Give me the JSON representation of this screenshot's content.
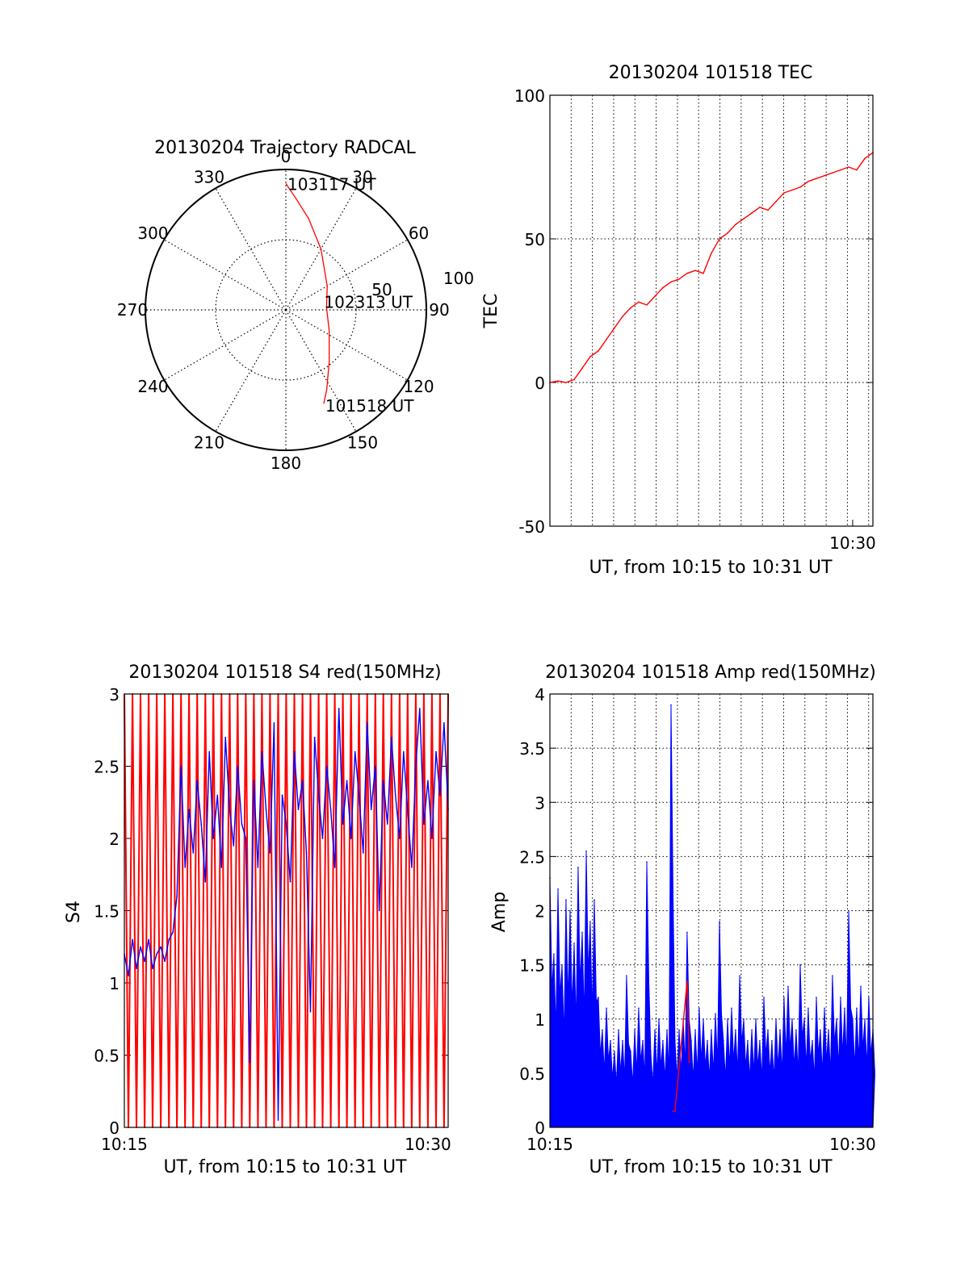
{
  "chart_data": [
    {
      "id": "trajectory",
      "type": "polar",
      "title": "20130204 Trajectory RADCAL",
      "angle_labels": [
        "0",
        "30",
        "60",
        "90",
        "120",
        "150",
        "180",
        "210",
        "240",
        "270",
        "300",
        "330"
      ],
      "radial_labels": [
        "50",
        "100"
      ],
      "rlim": [
        0,
        100
      ],
      "point_labels": [
        "103117 UT",
        "102313 UT",
        "101518 UT"
      ],
      "series": [
        {
          "color": "#ff0000",
          "points": [
            {
              "az": 0,
              "r": 90
            },
            {
              "az": 5,
              "r": 80
            },
            {
              "az": 14,
              "r": 67
            },
            {
              "az": 30,
              "r": 50
            },
            {
              "az": 60,
              "r": 34
            },
            {
              "az": 87,
              "r": 29
            },
            {
              "az": 115,
              "r": 34
            },
            {
              "az": 140,
              "r": 48
            },
            {
              "az": 153,
              "r": 64
            },
            {
              "az": 158,
              "r": 72
            }
          ]
        }
      ],
      "grid": true
    },
    {
      "id": "tec",
      "type": "line",
      "title": "20130204 101518 TEC",
      "xlabel": "UT, from 10:15 to 10:31 UT",
      "ylabel": "TEC",
      "xlim": [
        10.25,
        10.5167
      ],
      "ylim": [
        -50,
        100
      ],
      "yticks": [
        "-50",
        "0",
        "50",
        "100"
      ],
      "xticks": [
        "10:30"
      ],
      "grid": true,
      "series": [
        {
          "color": "#ff0000",
          "x": [
            10.25,
            10.2567,
            10.2633,
            10.27,
            10.2767,
            10.2833,
            10.29,
            10.2967,
            10.3033,
            10.31,
            10.3167,
            10.3233,
            10.33,
            10.3367,
            10.3433,
            10.35,
            10.3567,
            10.3633,
            10.37,
            10.3767,
            10.3833,
            10.39,
            10.3967,
            10.4033,
            10.41,
            10.4167,
            10.4233,
            10.43,
            10.4367,
            10.4433,
            10.45,
            10.4567,
            10.4633,
            10.47,
            10.4767,
            10.4833,
            10.49,
            10.4967,
            10.5033,
            10.51,
            10.5167
          ],
          "values": [
            0,
            0.5,
            0,
            1,
            5,
            9,
            11,
            15,
            19,
            23,
            26,
            28,
            27,
            30,
            33,
            35,
            36,
            38,
            39,
            38,
            45,
            50,
            52,
            55,
            57,
            59,
            61,
            60,
            63,
            66,
            67,
            68,
            70,
            71,
            72,
            73,
            74,
            75,
            74,
            78,
            80
          ]
        }
      ]
    },
    {
      "id": "s4",
      "type": "line",
      "title": "20130204 101518 S4 red(150MHz)",
      "xlabel": "UT, from 10:15 to 10:31 UT",
      "ylabel": "S4",
      "xlim": [
        10.25,
        10.5167
      ],
      "ylim": [
        0,
        3
      ],
      "yticks": [
        "0",
        "0.5",
        "1",
        "1.5",
        "2",
        "2.5",
        "3"
      ],
      "xticks": [
        "10:15",
        "10:30"
      ],
      "grid": false,
      "series": [
        {
          "color": "#ff0000",
          "x": [
            10.25,
            10.2533,
            10.2567,
            10.26,
            10.2633,
            10.2667,
            10.27,
            10.2733,
            10.2767,
            10.28,
            10.2833,
            10.2867,
            10.29,
            10.2933,
            10.2967,
            10.3,
            10.3033,
            10.3067,
            10.31,
            10.3133,
            10.3167,
            10.32,
            10.3233,
            10.3267,
            10.33,
            10.3333,
            10.3367,
            10.34,
            10.3433,
            10.3467,
            10.35,
            10.3533,
            10.3567,
            10.36,
            10.3633,
            10.3667,
            10.37,
            10.3733,
            10.3767,
            10.38,
            10.3833,
            10.3867,
            10.39,
            10.3933,
            10.3967,
            10.4,
            10.4033,
            10.4067,
            10.41,
            10.4133,
            10.4167,
            10.42,
            10.4233,
            10.4267,
            10.43,
            10.4333,
            10.4367,
            10.44,
            10.4433,
            10.4467,
            10.45,
            10.4533,
            10.4567,
            10.46,
            10.4633,
            10.4667,
            10.47,
            10.4733,
            10.4767,
            10.48,
            10.4833,
            10.4867,
            10.49,
            10.4933,
            10.4967,
            10.5,
            10.5033,
            10.5067,
            10.51,
            10.5133,
            10.5167
          ],
          "values": [
            3,
            0,
            3,
            0,
            3,
            0,
            3,
            0,
            3,
            0,
            3,
            0,
            3,
            0,
            3,
            0,
            3,
            0,
            3,
            0,
            3,
            0,
            3,
            0,
            3,
            0,
            3,
            0,
            3,
            0,
            3,
            0,
            3,
            0,
            3,
            0,
            3,
            0,
            3,
            0,
            3,
            0,
            3,
            0,
            3,
            0,
            3,
            0,
            3,
            0,
            3,
            0,
            3,
            0,
            3,
            0,
            3,
            0,
            3,
            0,
            3,
            0,
            3,
            0,
            3,
            0,
            3,
            0,
            3,
            0,
            3,
            0,
            3,
            0,
            3,
            0,
            3,
            0,
            3,
            0,
            3
          ]
        },
        {
          "color": "#0000ff",
          "x": [
            10.25,
            10.2533,
            10.2567,
            10.26,
            10.2633,
            10.2667,
            10.27,
            10.2733,
            10.2767,
            10.28,
            10.2833,
            10.2867,
            10.29,
            10.2933,
            10.2967,
            10.3,
            10.3033,
            10.3067,
            10.31,
            10.3133,
            10.3167,
            10.32,
            10.3233,
            10.3267,
            10.33,
            10.3333,
            10.3367,
            10.34,
            10.3433,
            10.3467,
            10.35,
            10.3533,
            10.3567,
            10.36,
            10.3633,
            10.3667,
            10.37,
            10.3733,
            10.3767,
            10.38,
            10.3833,
            10.3867,
            10.39,
            10.3933,
            10.3967,
            10.4,
            10.4033,
            10.4067,
            10.41,
            10.4133,
            10.4167,
            10.42,
            10.4233,
            10.4267,
            10.43,
            10.4333,
            10.4367,
            10.44,
            10.4433,
            10.4467,
            10.45,
            10.4533,
            10.4567,
            10.46,
            10.4633,
            10.4667,
            10.47,
            10.4733,
            10.4767,
            10.48,
            10.4833,
            10.4867,
            10.49,
            10.4933,
            10.4967,
            10.5,
            10.5033,
            10.5067,
            10.51,
            10.5133,
            10.5167
          ],
          "values": [
            1.2,
            1.05,
            1.3,
            1.1,
            1.25,
            1.15,
            1.3,
            1.1,
            1.2,
            1.25,
            1.15,
            1.3,
            1.35,
            1.6,
            2.5,
            1.8,
            2.2,
            1.9,
            2.4,
            2.1,
            1.7,
            2.6,
            2.0,
            2.3,
            1.8,
            2.7,
            2.2,
            1.95,
            2.5,
            2.1,
            2.0,
            0.45,
            2.4,
            1.8,
            2.6,
            2.2,
            1.9,
            2.8,
            0.05,
            2.3,
            2.1,
            1.7,
            2.6,
            2.2,
            2.4,
            1.9,
            0.8,
            2.7,
            2.3,
            2.0,
            2.5,
            2.2,
            1.8,
            2.9,
            2.1,
            2.4,
            2.0,
            2.6,
            2.3,
            1.9,
            2.8,
            2.2,
            2.5,
            1.5,
            2.4,
            2.1,
            2.7,
            2.3,
            2.0,
            2.6,
            2.2,
            1.8,
            2.5,
            2.9,
            2.1,
            2.4,
            2.0,
            2.6,
            2.3,
            2.8,
            2.2
          ]
        }
      ]
    },
    {
      "id": "amp",
      "type": "line",
      "title": "20130204 101518 Amp red(150MHz)",
      "xlabel": "UT, from 10:15 to 10:31 UT",
      "ylabel": "Amp",
      "xlim": [
        10.25,
        10.5167
      ],
      "ylim": [
        0,
        4
      ],
      "yticks": [
        "0",
        "0.5",
        "1",
        "1.5",
        "2",
        "2.5",
        "3",
        "3.5",
        "4"
      ],
      "xticks": [
        "10:15",
        "10:30"
      ],
      "grid": true,
      "series": [
        {
          "color": "#0000ff",
          "x": [
            10.25,
            10.2533,
            10.2567,
            10.26,
            10.2633,
            10.2667,
            10.27,
            10.2733,
            10.2767,
            10.28,
            10.2833,
            10.2867,
            10.29,
            10.2933,
            10.2967,
            10.3,
            10.3033,
            10.3067,
            10.31,
            10.3133,
            10.3167,
            10.32,
            10.3233,
            10.3267,
            10.33,
            10.3333,
            10.3367,
            10.34,
            10.3433,
            10.3467,
            10.35,
            10.3533,
            10.3567,
            10.36,
            10.3633,
            10.3667,
            10.37,
            10.3733,
            10.3767,
            10.38,
            10.3833,
            10.3867,
            10.39,
            10.3933,
            10.3967,
            10.4,
            10.4033,
            10.4067,
            10.41,
            10.4133,
            10.4167,
            10.42,
            10.4233,
            10.4267,
            10.43,
            10.4333,
            10.4367,
            10.44,
            10.4433,
            10.4467,
            10.45,
            10.4533,
            10.4567,
            10.46,
            10.4633,
            10.4667,
            10.47,
            10.4733,
            10.4767,
            10.48,
            10.4833,
            10.4867,
            10.49,
            10.4933,
            10.4967,
            10.5,
            10.5033,
            10.5067,
            10.51,
            10.5133,
            10.5167
          ],
          "values": [
            2.3,
            1.6,
            2.2,
            1.5,
            2.1,
            2.0,
            1.7,
            2.4,
            1.8,
            2.55,
            1.9,
            2.1,
            1.2,
            0.9,
            1.1,
            0.8,
            0.7,
            0.9,
            0.8,
            1.4,
            0.7,
            0.9,
            1.1,
            0.8,
            2.45,
            0.7,
            0.9,
            1.0,
            0.8,
            0.9,
            3.9,
            0.8,
            0.9,
            1.0,
            1.8,
            0.8,
            0.9,
            1.1,
            1.0,
            0.8,
            0.9,
            1.05,
            1.9,
            0.8,
            1.0,
            1.1,
            0.9,
            1.4,
            1.0,
            0.8,
            0.9,
            1.0,
            0.8,
            1.2,
            0.9,
            0.8,
            1.0,
            0.9,
            1.2,
            1.3,
            1.0,
            0.9,
            1.5,
            1.0,
            1.1,
            0.8,
            1.2,
            0.9,
            1.1,
            0.9,
            1.4,
            1.0,
            1.2,
            1.1,
            2.0,
            1.0,
            1.1,
            1.3,
            1.0,
            1.2,
            0.9
          ]
        },
        {
          "color": "#ff0000",
          "x": [
            10.3517,
            10.3533,
            10.3633,
            10.365
          ],
          "values": [
            0.15,
            0.15,
            1.35,
            0.6
          ]
        }
      ]
    }
  ]
}
